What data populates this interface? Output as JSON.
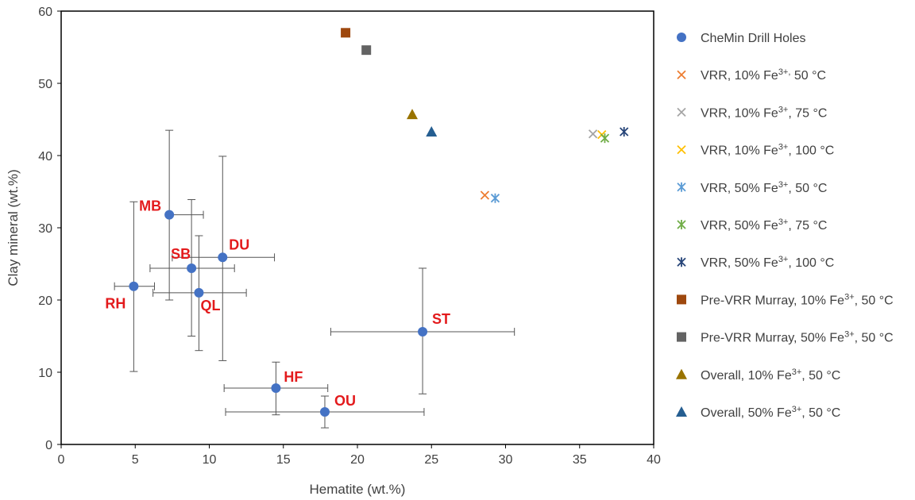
{
  "chart_data": {
    "type": "scatter",
    "xlabel": "Hematite (wt.%)",
    "ylabel": "Clay mineral (wt.%)",
    "xlim": [
      0,
      40
    ],
    "ylim": [
      0,
      60
    ],
    "xticks": [
      0,
      5,
      10,
      15,
      20,
      25,
      30,
      35,
      40
    ],
    "yticks": [
      0,
      10,
      20,
      30,
      40,
      50,
      60
    ],
    "grid": false,
    "legend_position": "right",
    "series": [
      {
        "name": "CheMin Drill Holes",
        "marker": "circle",
        "color": "#4472c4",
        "points": [
          {
            "label": "MB",
            "x": 7.3,
            "y": 31.8,
            "xerr": [
              7.3,
              9.6
            ],
            "yerr": [
              20.0,
              43.5
            ]
          },
          {
            "label": "SB",
            "x": 8.8,
            "y": 24.4,
            "xerr": [
              6.0,
              11.7
            ],
            "yerr": [
              15.0,
              33.9
            ]
          },
          {
            "label": "DU",
            "x": 10.9,
            "y": 25.9,
            "xerr": [
              7.5,
              14.4
            ],
            "yerr": [
              11.6,
              39.9
            ]
          },
          {
            "label": "RH",
            "x": 4.9,
            "y": 21.9,
            "xerr": [
              3.6,
              6.3
            ],
            "yerr": [
              10.1,
              33.6
            ]
          },
          {
            "label": "QL",
            "x": 9.3,
            "y": 21.0,
            "xerr": [
              6.2,
              12.5
            ],
            "yerr": [
              13.0,
              28.9
            ]
          },
          {
            "label": "ST",
            "x": 24.4,
            "y": 15.6,
            "xerr": [
              18.2,
              30.6
            ],
            "yerr": [
              7.0,
              24.4
            ]
          },
          {
            "label": "HF",
            "x": 14.5,
            "y": 7.8,
            "xerr": [
              11.0,
              18.0
            ],
            "yerr": [
              4.1,
              11.4
            ]
          },
          {
            "label": "OU",
            "x": 17.8,
            "y": 4.5,
            "xerr": [
              11.1,
              24.5
            ],
            "yerr": [
              2.3,
              6.7
            ]
          }
        ]
      },
      {
        "name_base": "VRR, 10% Fe",
        "name_sup": "3+,",
        "name_rest": " 50 °C",
        "marker": "x",
        "color": "#ed7d31",
        "points": [
          {
            "x": 28.6,
            "y": 34.5
          }
        ]
      },
      {
        "name_base": "VRR, 10% Fe",
        "name_sup": "3+",
        "name_rest": ", 75 °C",
        "marker": "x",
        "color": "#a5a5a5",
        "points": [
          {
            "x": 35.9,
            "y": 43.0
          }
        ]
      },
      {
        "name_base": "VRR, 10% Fe",
        "name_sup": "3+",
        "name_rest": ", 100 °C",
        "marker": "x",
        "color": "#ffc000",
        "points": [
          {
            "x": 36.5,
            "y": 42.9
          }
        ]
      },
      {
        "name_base": "VRR, 50% Fe",
        "name_sup": "3+",
        "name_rest": ", 50 °C",
        "marker": "star",
        "color": "#5b9bd5",
        "points": [
          {
            "x": 29.3,
            "y": 34.1
          }
        ]
      },
      {
        "name_base": "VRR, 50% Fe",
        "name_sup": "3+",
        "name_rest": ", 75 °C",
        "marker": "star",
        "color": "#70ad47",
        "points": [
          {
            "x": 36.7,
            "y": 42.4
          }
        ]
      },
      {
        "name_base": "VRR, 50% Fe",
        "name_sup": "3+",
        "name_rest": ", 100 °C",
        "marker": "star",
        "color": "#264478",
        "points": [
          {
            "x": 38.0,
            "y": 43.3
          }
        ]
      },
      {
        "name_base": "Pre-VRR Murray, 10% Fe",
        "name_sup": "3+",
        "name_rest": ", 50 °C",
        "marker": "square",
        "color": "#9e480e",
        "points": [
          {
            "x": 19.2,
            "y": 57.0
          }
        ]
      },
      {
        "name_base": "Pre-VRR Murray, 50% Fe",
        "name_sup": "3+",
        "name_rest": ", 50 °C",
        "marker": "square",
        "color": "#636363",
        "points": [
          {
            "x": 20.6,
            "y": 54.6
          }
        ]
      },
      {
        "name_base": "Overall, 10% Fe",
        "name_sup": "3+",
        "name_rest": ", 50 °C",
        "marker": "triangle",
        "color": "#997300",
        "points": [
          {
            "x": 23.7,
            "y": 45.7
          }
        ]
      },
      {
        "name_base": "Overall, 50% Fe",
        "name_sup": "3+",
        "name_rest": ", 50 °C",
        "marker": "triangle",
        "color": "#255e91",
        "points": [
          {
            "x": 25.0,
            "y": 43.3
          }
        ]
      }
    ]
  }
}
